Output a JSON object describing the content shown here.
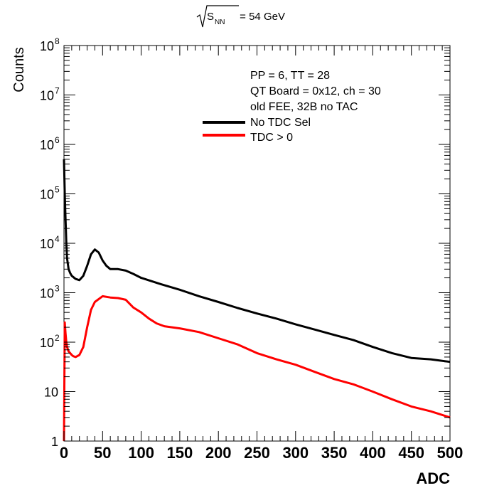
{
  "chart_data": {
    "type": "line",
    "title": {
      "sqrt_label": "S",
      "sqrt_subscript": "NN",
      "rest": " = 54 GeV"
    },
    "xlabel": "ADC",
    "ylabel": "Counts",
    "xlim": [
      0,
      500
    ],
    "ylim": [
      1,
      100000000
    ],
    "yscale": "log",
    "grid": false,
    "x_ticks": [
      {
        "value": 0,
        "label": "0"
      },
      {
        "value": 50,
        "label": "50"
      },
      {
        "value": 100,
        "label": "100"
      },
      {
        "value": 150,
        "label": "150"
      },
      {
        "value": 200,
        "label": "200"
      },
      {
        "value": 250,
        "label": "250"
      },
      {
        "value": 300,
        "label": "300"
      },
      {
        "value": 350,
        "label": "350"
      },
      {
        "value": 400,
        "label": "400"
      },
      {
        "value": 450,
        "label": "450"
      },
      {
        "value": 500,
        "label": "500"
      }
    ],
    "y_ticks": [
      {
        "value": 1,
        "base": "1",
        "exp": ""
      },
      {
        "value": 10,
        "base": "10",
        "exp": ""
      },
      {
        "value": 100,
        "base": "10",
        "exp": "2"
      },
      {
        "value": 1000,
        "base": "10",
        "exp": "3"
      },
      {
        "value": 10000,
        "base": "10",
        "exp": "4"
      },
      {
        "value": 100000,
        "base": "10",
        "exp": "5"
      },
      {
        "value": 1000000,
        "base": "10",
        "exp": "6"
      },
      {
        "value": 10000000,
        "base": "10",
        "exp": "7"
      },
      {
        "value": 100000000,
        "base": "10",
        "exp": "8"
      }
    ],
    "info_text": [
      "PP = 6, TT = 28",
      "QT Board = 0x12, ch = 30",
      "old FEE, 32B no TAC"
    ],
    "legend_position": "top-right",
    "series": [
      {
        "name": "No TDC Sel",
        "color": "#000000",
        "x": [
          0,
          1,
          2,
          3,
          4,
          6,
          8,
          10,
          15,
          20,
          25,
          30,
          35,
          40,
          45,
          50,
          55,
          60,
          70,
          80,
          90,
          100,
          125,
          150,
          175,
          200,
          225,
          250,
          275,
          300,
          325,
          350,
          375,
          400,
          425,
          450,
          475,
          500
        ],
        "values": [
          500000,
          100000,
          30000,
          10000,
          5000,
          3000,
          2500,
          2200,
          1900,
          1800,
          2200,
          3500,
          6000,
          7500,
          6500,
          4500,
          3500,
          3000,
          3000,
          2800,
          2400,
          2000,
          1500,
          1150,
          850,
          650,
          490,
          380,
          300,
          230,
          180,
          140,
          110,
          80,
          60,
          48,
          45,
          40
        ]
      },
      {
        "name": "TDC > 0",
        "color": "#ff0000",
        "x": [
          0,
          1,
          2,
          3,
          4,
          6,
          8,
          10,
          12,
          15,
          20,
          25,
          30,
          35,
          40,
          50,
          60,
          70,
          80,
          90,
          100,
          110,
          120,
          130,
          150,
          175,
          200,
          225,
          250,
          275,
          300,
          325,
          350,
          375,
          400,
          425,
          450,
          475,
          500
        ],
        "values": [
          1,
          250,
          150,
          100,
          80,
          65,
          60,
          55,
          52,
          50,
          55,
          80,
          200,
          450,
          650,
          850,
          800,
          780,
          720,
          500,
          400,
          300,
          240,
          210,
          190,
          160,
          120,
          90,
          60,
          45,
          35,
          25,
          18,
          14,
          10,
          7,
          5,
          4,
          3
        ]
      }
    ]
  }
}
